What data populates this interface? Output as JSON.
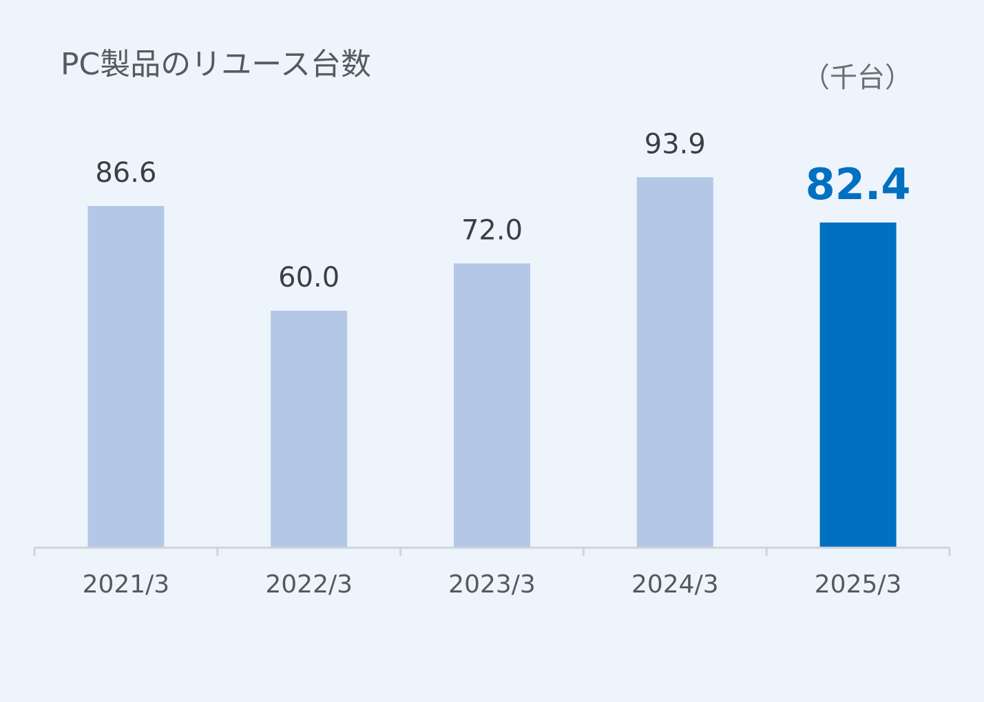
{
  "chart_data": {
    "type": "bar",
    "title": "PC製品のリユース台数",
    "unit": "（千台）",
    "categories": [
      "2021/3",
      "2022/3",
      "2023/3",
      "2024/3",
      "2025/3"
    ],
    "values": [
      86.6,
      60.0,
      72.0,
      93.9,
      82.4
    ],
    "value_labels": [
      "86.6",
      "60.0",
      "72.0",
      "93.9",
      "82.4"
    ],
    "highlight_index": 4,
    "ylim": [
      0,
      94
    ],
    "grid": false,
    "colors": {
      "bar": "#b4c7e7",
      "highlight_bar": "#0070c0",
      "axis": "#d0d4d9"
    }
  }
}
